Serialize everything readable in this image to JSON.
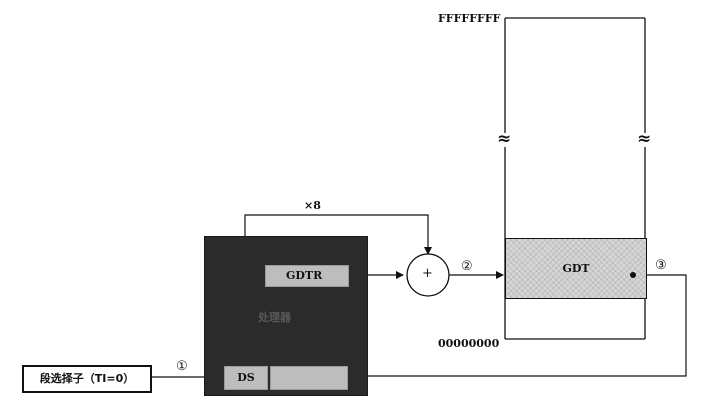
{
  "labels": {
    "addr_high": "FFFFFFFF",
    "addr_low": "00000000",
    "gdt": "GDT",
    "gdtr": "GDTR",
    "ds": "DS",
    "processor": "处理器",
    "selector": "段选择子（TI=0）",
    "times8": "×8",
    "plus": "+",
    "step1": "①",
    "step2": "②",
    "step3": "③",
    "break_mark": "≈"
  },
  "colors": {
    "processor_bg": "#2b2b2b",
    "register_bg": "#bdbdbd",
    "gdt_fill": "#d6d6d6",
    "line": "#111111"
  }
}
